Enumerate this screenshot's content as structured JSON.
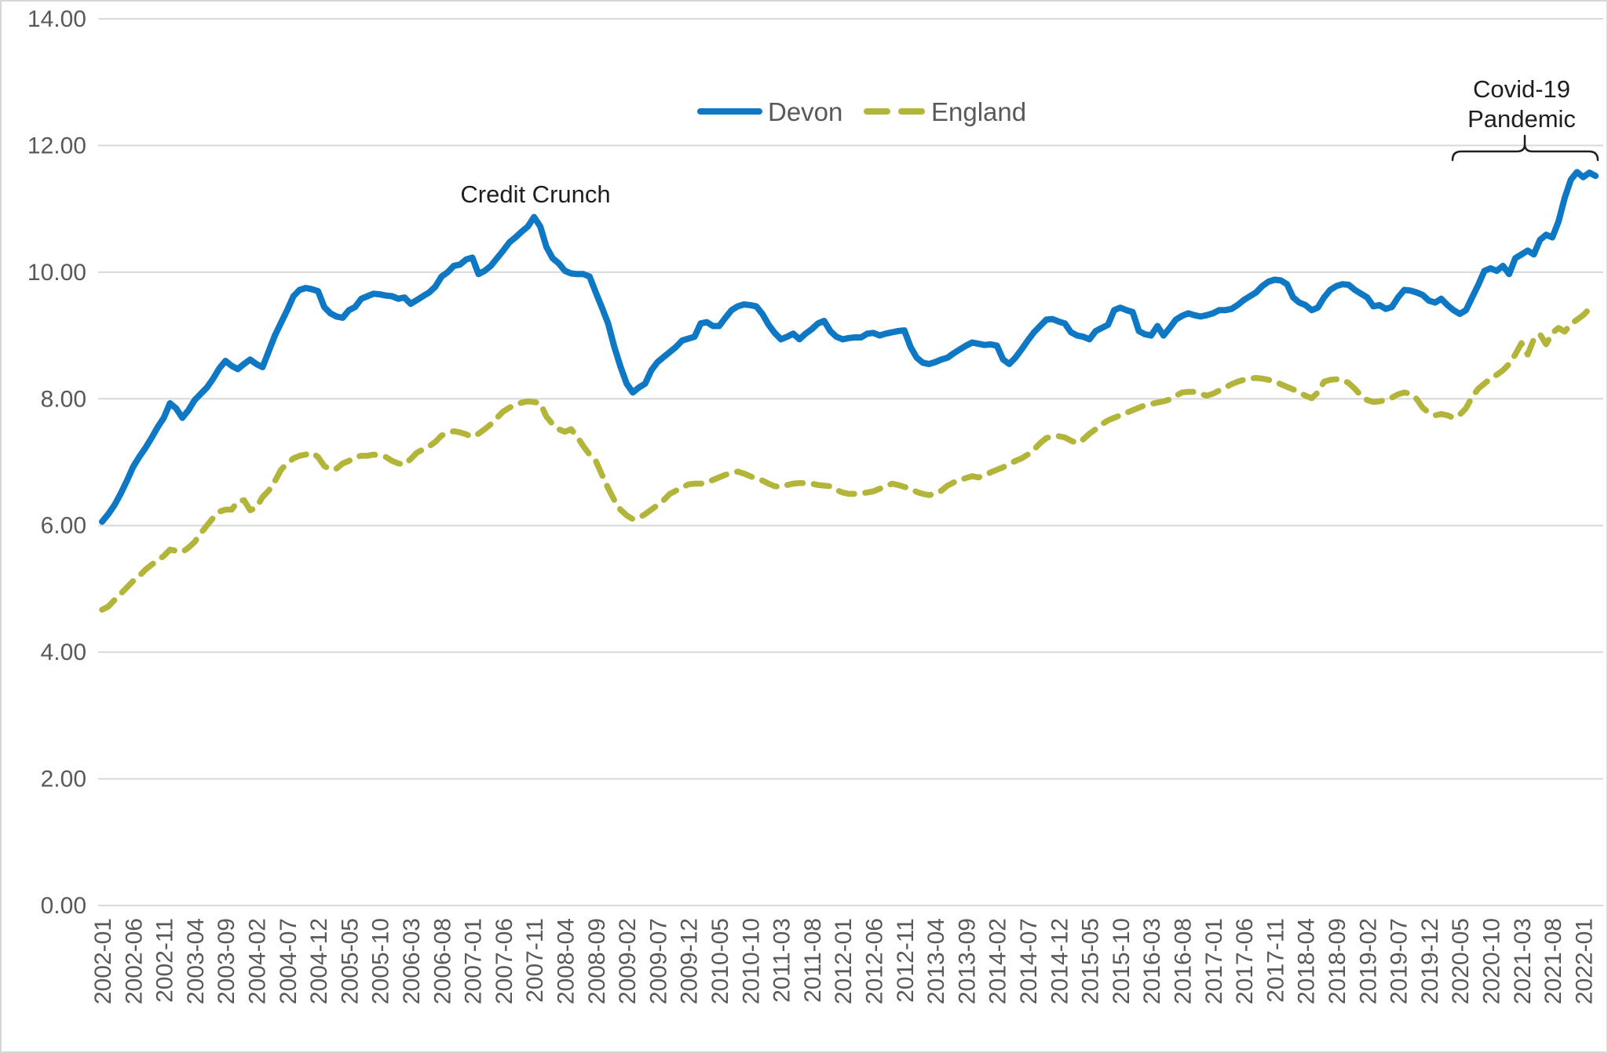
{
  "chart_data": {
    "type": "line",
    "title": "",
    "grid": "horizontal",
    "legend_position": "top-center",
    "x_axis": {
      "frequency": "monthly",
      "start": "2002-01",
      "end": "2022-03",
      "tick_labels": [
        "2002-01",
        "2002-06",
        "2002-11",
        "2003-04",
        "2003-09",
        "2004-02",
        "2004-07",
        "2004-12",
        "2005-05",
        "2005-10",
        "2006-03",
        "2006-08",
        "2007-01",
        "2007-06",
        "2007-11",
        "2008-04",
        "2008-09",
        "2009-02",
        "2009-07",
        "2009-12",
        "2010-05",
        "2010-10",
        "2011-03",
        "2011-08",
        "2012-01",
        "2012-06",
        "2012-11",
        "2013-04",
        "2013-09",
        "2014-02",
        "2014-07",
        "2014-12",
        "2015-05",
        "2015-10",
        "2016-03",
        "2016-08",
        "2017-01",
        "2017-06",
        "2017-11",
        "2018-04",
        "2018-09",
        "2019-02",
        "2019-07",
        "2019-12",
        "2020-05",
        "2020-10",
        "2021-03",
        "2021-08",
        "2022-01"
      ]
    },
    "y_axis": {
      "min": 0,
      "max": 14,
      "tick_step": 2,
      "tick_labels": [
        "14.00",
        "12.00",
        "10.00",
        "8.00",
        "6.00",
        "4.00",
        "2.00",
        "0.00"
      ]
    },
    "series": [
      {
        "name": "Devon",
        "color": "#0e78c4",
        "line_style": "solid",
        "values": [
          6.06,
          6.18,
          6.32,
          6.5,
          6.7,
          6.92,
          7.08,
          7.22,
          7.38,
          7.55,
          7.7,
          7.93,
          7.85,
          7.7,
          7.82,
          7.98,
          8.08,
          8.18,
          8.32,
          8.48,
          8.6,
          8.52,
          8.47,
          8.55,
          8.62,
          8.55,
          8.5,
          8.75,
          9.0,
          9.2,
          9.4,
          9.62,
          9.72,
          9.75,
          9.73,
          9.7,
          9.45,
          9.35,
          9.3,
          9.28,
          9.4,
          9.45,
          9.58,
          9.62,
          9.66,
          9.65,
          9.63,
          9.62,
          9.58,
          9.6,
          9.5,
          9.56,
          9.62,
          9.68,
          9.77,
          9.93,
          10.0,
          10.1,
          10.12,
          10.2,
          10.23,
          9.97,
          10.02,
          10.1,
          10.22,
          10.34,
          10.47,
          10.55,
          10.64,
          10.72,
          10.87,
          10.72,
          10.4,
          10.22,
          10.14,
          10.02,
          9.98,
          9.97,
          9.97,
          9.93,
          9.68,
          9.44,
          9.19,
          8.82,
          8.51,
          8.24,
          8.1,
          8.18,
          8.24,
          8.45,
          8.58,
          8.66,
          8.74,
          8.82,
          8.92,
          8.95,
          8.98,
          9.19,
          9.21,
          9.15,
          9.15,
          9.28,
          9.4,
          9.46,
          9.49,
          9.48,
          9.46,
          9.34,
          9.17,
          9.04,
          8.94,
          8.98,
          9.03,
          8.94,
          9.03,
          9.1,
          9.19,
          9.23,
          9.07,
          8.98,
          8.94,
          8.96,
          8.97,
          8.97,
          9.03,
          9.04,
          9.0,
          9.03,
          9.05,
          9.07,
          9.08,
          8.82,
          8.65,
          8.57,
          8.55,
          8.58,
          8.62,
          8.65,
          8.72,
          8.78,
          8.84,
          8.89,
          8.87,
          8.85,
          8.86,
          8.84,
          8.62,
          8.55,
          8.65,
          8.78,
          8.92,
          9.05,
          9.15,
          9.25,
          9.26,
          9.22,
          9.19,
          9.05,
          9.0,
          8.98,
          8.94,
          9.07,
          9.12,
          9.17,
          9.4,
          9.44,
          9.4,
          9.37,
          9.07,
          9.02,
          9.0,
          9.15,
          9.0,
          9.12,
          9.25,
          9.31,
          9.35,
          9.32,
          9.3,
          9.32,
          9.35,
          9.4,
          9.4,
          9.42,
          9.48,
          9.56,
          9.62,
          9.68,
          9.78,
          9.85,
          9.88,
          9.87,
          9.81,
          9.6,
          9.52,
          9.48,
          9.4,
          9.44,
          9.6,
          9.72,
          9.78,
          9.81,
          9.8,
          9.72,
          9.66,
          9.6,
          9.46,
          9.48,
          9.42,
          9.45,
          9.6,
          9.72,
          9.71,
          9.68,
          9.64,
          9.55,
          9.52,
          9.58,
          9.48,
          9.4,
          9.34,
          9.4,
          9.6,
          9.8,
          10.02,
          10.06,
          10.02,
          10.1,
          9.97,
          10.22,
          10.28,
          10.34,
          10.28,
          10.51,
          10.59,
          10.55,
          10.8,
          11.17,
          11.46,
          11.58,
          11.5,
          11.57,
          11.52
        ]
      },
      {
        "name": "England",
        "color": "#b2b53a",
        "line_style": "dashed",
        "values": [
          4.67,
          4.72,
          4.82,
          4.92,
          5.02,
          5.12,
          5.2,
          5.3,
          5.38,
          5.45,
          5.52,
          5.62,
          5.6,
          5.58,
          5.65,
          5.74,
          5.88,
          6.0,
          6.12,
          6.22,
          6.25,
          6.25,
          6.38,
          6.4,
          6.24,
          6.28,
          6.45,
          6.55,
          6.7,
          6.88,
          6.98,
          7.06,
          7.1,
          7.12,
          7.15,
          7.08,
          6.94,
          6.88,
          6.9,
          6.98,
          7.02,
          7.08,
          7.1,
          7.1,
          7.12,
          7.1,
          7.08,
          7.02,
          6.98,
          6.96,
          7.05,
          7.15,
          7.2,
          7.25,
          7.32,
          7.42,
          7.46,
          7.49,
          7.47,
          7.44,
          7.4,
          7.45,
          7.52,
          7.6,
          7.7,
          7.8,
          7.86,
          7.91,
          7.94,
          7.96,
          7.95,
          7.93,
          7.72,
          7.6,
          7.52,
          7.48,
          7.52,
          7.4,
          7.25,
          7.12,
          7.02,
          6.8,
          6.59,
          6.4,
          6.25,
          6.16,
          6.1,
          6.12,
          6.18,
          6.25,
          6.32,
          6.4,
          6.5,
          6.55,
          6.6,
          6.65,
          6.66,
          6.66,
          6.68,
          6.72,
          6.76,
          6.8,
          6.83,
          6.85,
          6.82,
          6.78,
          6.74,
          6.71,
          6.66,
          6.62,
          6.61,
          6.64,
          6.66,
          6.67,
          6.67,
          6.66,
          6.64,
          6.63,
          6.62,
          6.56,
          6.52,
          6.5,
          6.5,
          6.51,
          6.52,
          6.54,
          6.58,
          6.62,
          6.66,
          6.64,
          6.61,
          6.58,
          6.53,
          6.5,
          6.48,
          6.5,
          6.55,
          6.63,
          6.68,
          6.72,
          6.75,
          6.78,
          6.76,
          6.79,
          6.84,
          6.88,
          6.92,
          6.97,
          7.02,
          7.06,
          7.12,
          7.2,
          7.3,
          7.38,
          7.41,
          7.41,
          7.39,
          7.34,
          7.3,
          7.36,
          7.45,
          7.52,
          7.6,
          7.66,
          7.7,
          7.74,
          7.78,
          7.82,
          7.86,
          7.9,
          7.92,
          7.94,
          7.96,
          7.99,
          8.05,
          8.1,
          8.11,
          8.11,
          8.08,
          8.05,
          8.08,
          8.13,
          8.18,
          8.23,
          8.27,
          8.3,
          8.32,
          8.33,
          8.32,
          8.3,
          8.28,
          8.23,
          8.19,
          8.15,
          8.1,
          8.05,
          8.01,
          8.1,
          8.27,
          8.3,
          8.31,
          8.3,
          8.25,
          8.16,
          8.05,
          7.98,
          7.95,
          7.96,
          7.98,
          8.02,
          8.07,
          8.1,
          8.08,
          8.0,
          7.86,
          7.78,
          7.74,
          7.76,
          7.74,
          7.7,
          7.75,
          7.85,
          8.03,
          8.16,
          8.24,
          8.32,
          8.38,
          8.45,
          8.55,
          8.7,
          8.88,
          8.7,
          8.94,
          9.02,
          8.86,
          9.04,
          9.12,
          9.06,
          9.18,
          9.25,
          9.32,
          9.42,
          9.4
        ]
      }
    ],
    "annotations": [
      {
        "text": "Credit Crunch",
        "points_to": "Devon peak 10.87 at 2007-11"
      },
      {
        "line1": "Covid-19",
        "line2": "Pandemic",
        "points_to": "bracket over 2020-03 to 2022-03"
      }
    ]
  },
  "colors": {
    "grid": "#d9d9d9",
    "axis_text": "#595959",
    "legend_text": "#595959",
    "annotation_text": "#1f1f1f",
    "background": "#ffffff",
    "border": "#d6d6d6"
  }
}
